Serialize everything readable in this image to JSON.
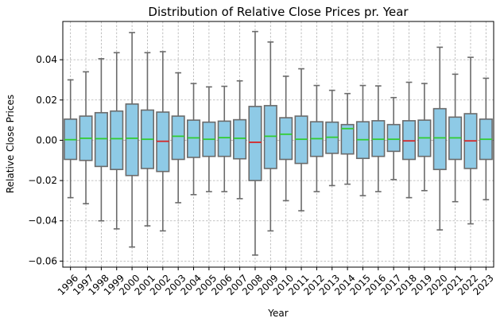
{
  "chart_data": {
    "type": "box",
    "title": "Distribution of Relative Close Prices pr. Year",
    "xlabel": "Year",
    "ylabel": "Relative Close Prices",
    "ylim": [
      -0.063,
      0.059
    ],
    "grid": true,
    "yticks": [
      -0.06,
      -0.04,
      -0.02,
      0.0,
      0.02,
      0.04
    ],
    "ytick_labels": [
      "−0.06",
      "−0.04",
      "−0.02",
      "0.00",
      "0.02",
      "0.04"
    ],
    "box_color": "#8ecae6",
    "median_up_color": "#32cd32",
    "median_down_color": "#d62728",
    "categories": [
      "1996",
      "1997",
      "1998",
      "1999",
      "2000",
      "2001",
      "2002",
      "2003",
      "2004",
      "2005",
      "2006",
      "2007",
      "2008",
      "2009",
      "2010",
      "2011",
      "2012",
      "2013",
      "2014",
      "2015",
      "2016",
      "2017",
      "2018",
      "2019",
      "2020",
      "2021",
      "2022",
      "2023"
    ],
    "boxes": [
      {
        "whislo": -0.0285,
        "q1": -0.0095,
        "med": 0.0003,
        "q3": 0.0105,
        "whishi": 0.03
      },
      {
        "whislo": -0.0315,
        "q1": -0.01,
        "med": 0.001,
        "q3": 0.012,
        "whishi": 0.034
      },
      {
        "whislo": -0.04,
        "q1": -0.013,
        "med": 0.0008,
        "q3": 0.0137,
        "whishi": 0.0405
      },
      {
        "whislo": -0.044,
        "q1": -0.0145,
        "med": 0.0008,
        "q3": 0.0145,
        "whishi": 0.0435
      },
      {
        "whislo": -0.053,
        "q1": -0.0175,
        "med": 0.001,
        "q3": 0.018,
        "whishi": 0.0535
      },
      {
        "whislo": -0.0425,
        "q1": -0.014,
        "med": 0.0005,
        "q3": 0.015,
        "whishi": 0.0435
      },
      {
        "whislo": -0.045,
        "q1": -0.0155,
        "med": -0.0005,
        "q3": 0.014,
        "whishi": 0.044
      },
      {
        "whislo": -0.031,
        "q1": -0.0095,
        "med": 0.002,
        "q3": 0.012,
        "whishi": 0.0335
      },
      {
        "whislo": -0.027,
        "q1": -0.0085,
        "med": 0.0012,
        "q3": 0.01,
        "whishi": 0.0282
      },
      {
        "whislo": -0.0255,
        "q1": -0.008,
        "med": 0.0005,
        "q3": 0.009,
        "whishi": 0.0265
      },
      {
        "whislo": -0.0255,
        "q1": -0.008,
        "med": 0.0013,
        "q3": 0.0095,
        "whishi": 0.0268
      },
      {
        "whislo": -0.029,
        "q1": -0.0092,
        "med": 0.001,
        "q3": 0.0102,
        "whishi": 0.0295
      },
      {
        "whislo": -0.057,
        "q1": -0.02,
        "med": -0.001,
        "q3": 0.0168,
        "whishi": 0.054
      },
      {
        "whislo": -0.045,
        "q1": -0.014,
        "med": 0.002,
        "q3": 0.0172,
        "whishi": 0.0488
      },
      {
        "whislo": -0.03,
        "q1": -0.0095,
        "med": 0.003,
        "q3": 0.0112,
        "whishi": 0.0318
      },
      {
        "whislo": -0.035,
        "q1": -0.0115,
        "med": 0.0005,
        "q3": 0.012,
        "whishi": 0.0355
      },
      {
        "whislo": -0.0255,
        "q1": -0.008,
        "med": 0.0008,
        "q3": 0.0092,
        "whishi": 0.0272
      },
      {
        "whislo": -0.0225,
        "q1": -0.0065,
        "med": 0.0015,
        "q3": 0.009,
        "whishi": 0.0248
      },
      {
        "whislo": -0.0218,
        "q1": -0.0068,
        "med": 0.0058,
        "q3": 0.0078,
        "whishi": 0.0232
      },
      {
        "whislo": -0.0275,
        "q1": -0.009,
        "med": 0.0003,
        "q3": 0.0092,
        "whishi": 0.0272
      },
      {
        "whislo": -0.0255,
        "q1": -0.008,
        "med": 0.0005,
        "q3": 0.0097,
        "whishi": 0.027
      },
      {
        "whislo": -0.0195,
        "q1": -0.0055,
        "med": 0.0005,
        "q3": 0.0078,
        "whishi": 0.0212
      },
      {
        "whislo": -0.0285,
        "q1": -0.0095,
        "med": -0.0003,
        "q3": 0.0097,
        "whishi": 0.0288
      },
      {
        "whislo": -0.025,
        "q1": -0.008,
        "med": 0.0012,
        "q3": 0.01,
        "whishi": 0.0282
      },
      {
        "whislo": -0.0445,
        "q1": -0.0145,
        "med": 0.0012,
        "q3": 0.0157,
        "whishi": 0.0462
      },
      {
        "whislo": -0.0305,
        "q1": -0.0095,
        "med": 0.0012,
        "q3": 0.0115,
        "whishi": 0.0328
      },
      {
        "whislo": -0.0415,
        "q1": -0.014,
        "med": -0.0003,
        "q3": 0.0132,
        "whishi": 0.0412
      },
      {
        "whislo": -0.0295,
        "q1": -0.0095,
        "med": 0.0005,
        "q3": 0.0105,
        "whishi": 0.0308
      }
    ]
  }
}
